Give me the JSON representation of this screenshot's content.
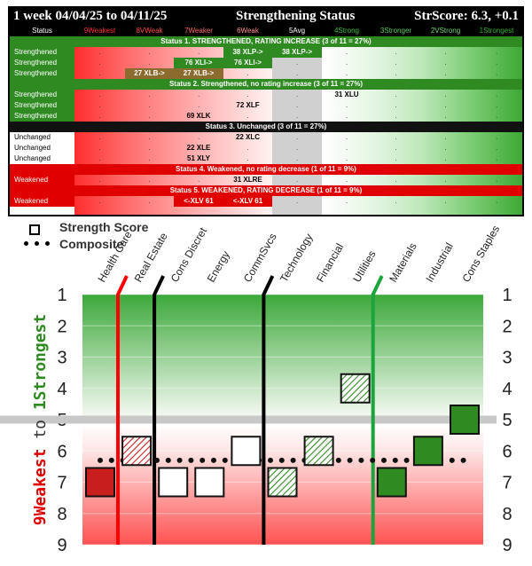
{
  "header": {
    "period": "1 week 04/04/25 to 04/11/25",
    "title": "Strengthening Status",
    "score": "StrScore: 6.3, +0.1"
  },
  "table": {
    "columns": [
      "Status",
      "9Weakest",
      "8VWeak",
      "7Weaker",
      "6Weak",
      "5Avg",
      "4Strong",
      "3Stronger",
      "2VStrong",
      "1Strongest"
    ],
    "column_colors": [
      "#ffffff",
      "#ff3030",
      "#ff4a4a",
      "#ff6a6a",
      "#ff8e8e",
      "#ffffff",
      "#3cc33c",
      "#57cf57",
      "#6dd96d",
      "#2db52d"
    ],
    "sections": [
      {
        "heading": "Status 1. STRENGTHENED, RATING INCREASE (3 of 11 = 27%)",
        "heading_color": "#2f8a22",
        "rows": [
          {
            "label": "Strengthened",
            "label_bg": "#2f8a22",
            "label_color": "#ffffff",
            "cells": [
              {
                "col": 4,
                "span": 1,
                "text": "38 XLP->",
                "bg": "#2f8a22",
                "color": "#ffffff"
              },
              {
                "col": 5,
                "span": 1,
                "text": "38 XLP->",
                "bg": "#2f8a22",
                "color": "#ffffff"
              }
            ]
          },
          {
            "label": "Strengthened",
            "label_bg": "#2f8a22",
            "label_color": "#ffffff",
            "cells": [
              {
                "col": 3,
                "span": 1,
                "text": "76 XLI->",
                "bg": "#2f8a22",
                "color": "#ffffff"
              },
              {
                "col": 4,
                "span": 1,
                "text": "76 XLI->",
                "bg": "#2f8a22",
                "color": "#ffffff"
              }
            ]
          },
          {
            "label": "Strengthened",
            "label_bg": "#2f8a22",
            "label_color": "#ffffff",
            "cells": [
              {
                "col": 2,
                "span": 1,
                "text": "27 XLB->",
                "bg": "#8b6b2e",
                "color": "#ffffff"
              },
              {
                "col": 3,
                "span": 1,
                "text": "27 XLB->",
                "bg": "#8b6b2e",
                "color": "#ffffff"
              }
            ]
          }
        ]
      },
      {
        "heading": "Status 2. Strengthened, no rating increase (3 of 11 = 27%)",
        "heading_color": "#2f8a22",
        "rows": [
          {
            "label": "Strengthened",
            "label_bg": "#2f8a22",
            "label_color": "#ffffff",
            "cells": [
              {
                "col": 6,
                "span": 1,
                "text": "31 XLU",
                "bg": "",
                "color": "#000000"
              }
            ]
          },
          {
            "label": "Strengthened",
            "label_bg": "#2f8a22",
            "label_color": "#ffffff",
            "cells": [
              {
                "col": 4,
                "span": 1,
                "text": "72 XLF",
                "bg": "",
                "color": "#000000"
              }
            ]
          },
          {
            "label": "Strengthened",
            "label_bg": "#2f8a22",
            "label_color": "#ffffff",
            "cells": [
              {
                "col": 3,
                "span": 1,
                "text": "69 XLK",
                "bg": "",
                "color": "#000000"
              }
            ]
          }
        ]
      },
      {
        "heading": "Status 3. Unchanged (3 of 11 = 27%)",
        "heading_color": "#111111",
        "rows": [
          {
            "label": "Unchanged",
            "label_bg": "#ffffff",
            "label_color": "#000000",
            "cells": [
              {
                "col": 4,
                "span": 1,
                "text": "22 XLC",
                "bg": "",
                "color": "#000000"
              }
            ]
          },
          {
            "label": "Unchanged",
            "label_bg": "#ffffff",
            "label_color": "#000000",
            "cells": [
              {
                "col": 3,
                "span": 1,
                "text": "22 XLE",
                "bg": "",
                "color": "#000000"
              }
            ]
          },
          {
            "label": "Unchanged",
            "label_bg": "#ffffff",
            "label_color": "#000000",
            "cells": [
              {
                "col": 3,
                "span": 1,
                "text": "51 XLY",
                "bg": "",
                "color": "#000000"
              }
            ]
          }
        ]
      },
      {
        "heading": "Status 4. Weakened, no rating decrease (1 of 11 = 9%)",
        "heading_color": "#e00000",
        "rows": [
          {
            "label": "Weakened",
            "label_bg": "#e00000",
            "label_color": "#ffffff",
            "cells": [
              {
                "col": 4,
                "span": 1,
                "text": "31 XLRE",
                "bg": "",
                "color": "#000000"
              }
            ]
          }
        ]
      },
      {
        "heading": "Status 5. WEAKENED, RATING DECREASE (1 of 11 = 9%)",
        "heading_color": "#e00000",
        "rows": [
          {
            "label": "Weakened",
            "label_bg": "#e00000",
            "label_color": "#ffffff",
            "cells": [
              {
                "col": 3,
                "span": 1,
                "text": "<-XLV 61",
                "bg": "#e00000",
                "color": "#ffffff"
              },
              {
                "col": 4,
                "span": 1,
                "text": "<-XLV 61",
                "bg": "#e00000",
                "color": "#ffffff"
              }
            ]
          }
        ]
      }
    ]
  },
  "legend": {
    "strength": "Strength Score",
    "composite": "Composite"
  },
  "chart_data": {
    "type": "scatter",
    "categories": [
      "Health Care",
      "Real Estate",
      "Cons Discret",
      "Energy",
      "CommSvcs",
      "Technology",
      "Financial",
      "Utilities",
      "Materials",
      "Industrial",
      "Cons Staples"
    ],
    "values": [
      7,
      6,
      7,
      7,
      6,
      7,
      6,
      4,
      7,
      6,
      5
    ],
    "marker_style": [
      "solid-red",
      "hatch-red",
      "white",
      "white",
      "white",
      "hatch-green",
      "hatch-green",
      "hatch-green",
      "solid-green",
      "solid-green",
      "solid-green"
    ],
    "composite": 6.3,
    "average_line": 5,
    "ylim": [
      9,
      1
    ],
    "yticks": [
      1,
      2,
      3,
      4,
      5,
      6,
      7,
      8,
      9
    ],
    "ylabel_bottom": "9Weakest",
    "ylabel_mid": "to",
    "ylabel_top": "1Strongest",
    "vertical_lines": [
      {
        "category": "Health Care",
        "color": "#ff0000"
      },
      {
        "category": "Real Estate",
        "color": "#000000"
      },
      {
        "category": "CommSvcs",
        "color": "#000000"
      },
      {
        "category": "Utilities",
        "color": "#1aa53c"
      }
    ],
    "colors": {
      "red": "#c81e1e",
      "green": "#2f8a22",
      "grey_line": "#c8c8c8"
    }
  }
}
